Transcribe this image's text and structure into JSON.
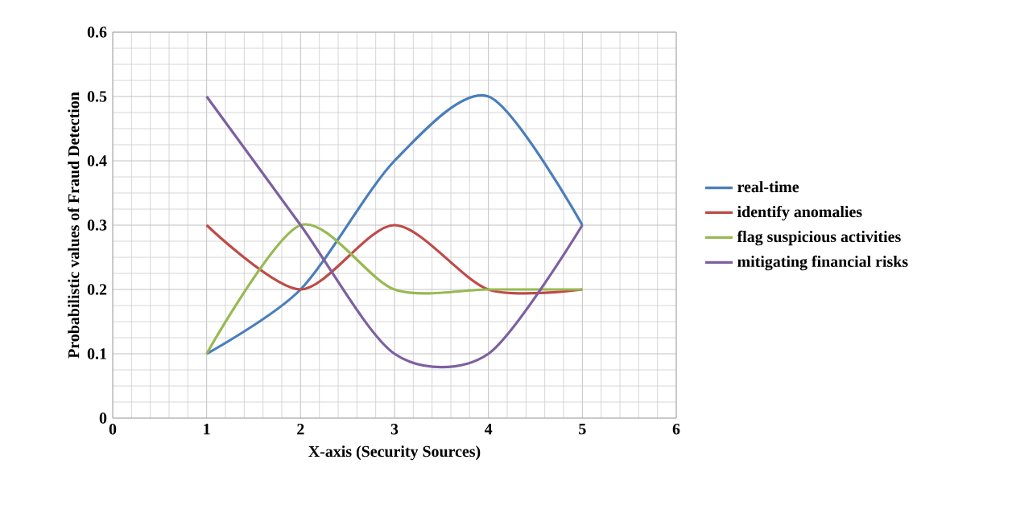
{
  "chart_data": {
    "type": "line",
    "xlabel": "X-axis (Security Sources)",
    "ylabel": "Probabilistic  values of Fraud Detection",
    "x": [
      1,
      2,
      3,
      4,
      5
    ],
    "series": [
      {
        "name": "real-time",
        "color": "#4a7ebb",
        "values": [
          0.1,
          0.2,
          0.4,
          0.5,
          0.3
        ]
      },
      {
        "name": "identify anomalies",
        "color": "#be4b48",
        "values": [
          0.3,
          0.2,
          0.3,
          0.2,
          0.2
        ]
      },
      {
        "name": "flag suspicious activities",
        "color": "#98b954",
        "values": [
          0.1,
          0.3,
          0.2,
          0.2,
          0.2
        ]
      },
      {
        "name": "mitigating financial risks",
        "color": "#7d60a0",
        "values": [
          0.5,
          0.3,
          0.1,
          0.1,
          0.3
        ]
      }
    ],
    "xlim": [
      0,
      6
    ],
    "xticks": [
      0,
      1,
      2,
      3,
      4,
      5,
      6
    ],
    "ylim": [
      0,
      0.6
    ],
    "yticks": [
      0,
      0.1,
      0.2,
      0.3,
      0.4,
      0.5,
      0.6
    ],
    "grid": true,
    "legend": "right",
    "marker": "none",
    "line_style": "solid"
  }
}
